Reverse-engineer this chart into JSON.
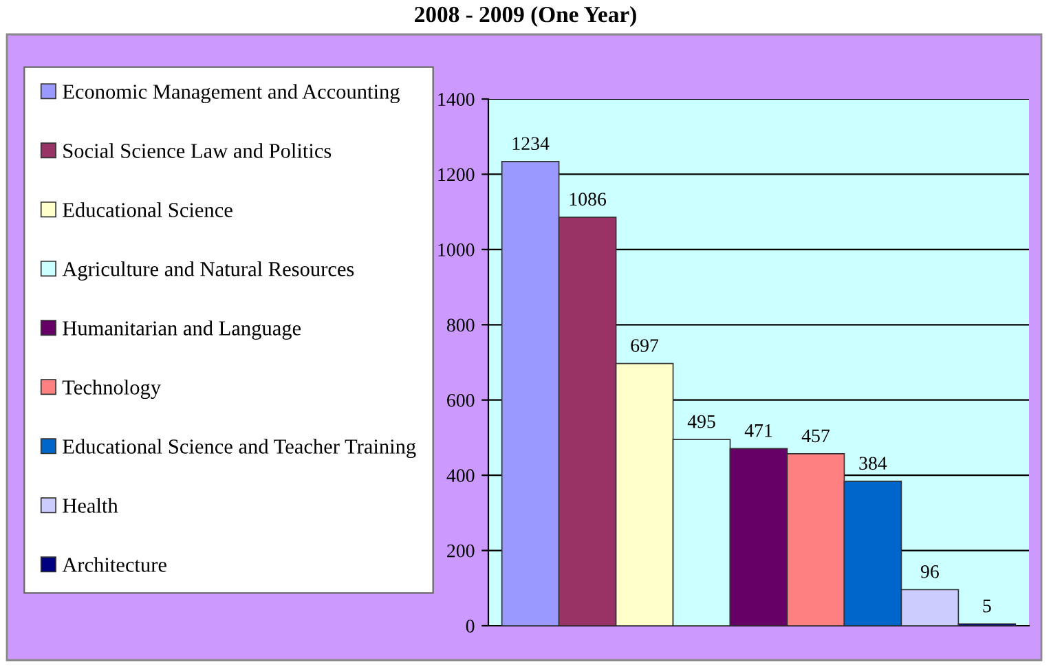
{
  "chart_data": {
    "type": "bar",
    "title": "2008 - 2009 (One Year)",
    "categories": [
      null
    ],
    "series": [
      {
        "name": "Economic Management and Accounting",
        "color": "#9999ff",
        "values": [
          1234
        ]
      },
      {
        "name": "Social Science Law and Politics",
        "color": "#993366",
        "values": [
          1086
        ]
      },
      {
        "name": "Educational Science",
        "color": "#ffffcc",
        "values": [
          697
        ]
      },
      {
        "name": "Agriculture and Natural Resources",
        "color": "#ccffff",
        "values": [
          495
        ]
      },
      {
        "name": "Humanitarian and Language",
        "color": "#660066",
        "values": [
          471
        ]
      },
      {
        "name": "Technology",
        "color": "#ff8080",
        "values": [
          457
        ]
      },
      {
        "name": "Educational Science and Teacher Training",
        "color": "#0066cc",
        "values": [
          384
        ]
      },
      {
        "name": "Health",
        "color": "#ccccff",
        "values": [
          96
        ]
      },
      {
        "name": "Architecture",
        "color": "#000080",
        "values": [
          5
        ]
      }
    ],
    "ylim": [
      0,
      1400
    ],
    "yticks": [
      0,
      200,
      400,
      600,
      800,
      1000,
      1200,
      1400
    ],
    "grid": "y",
    "legend": "left",
    "tick_labels": "y",
    "data_labels": true
  }
}
